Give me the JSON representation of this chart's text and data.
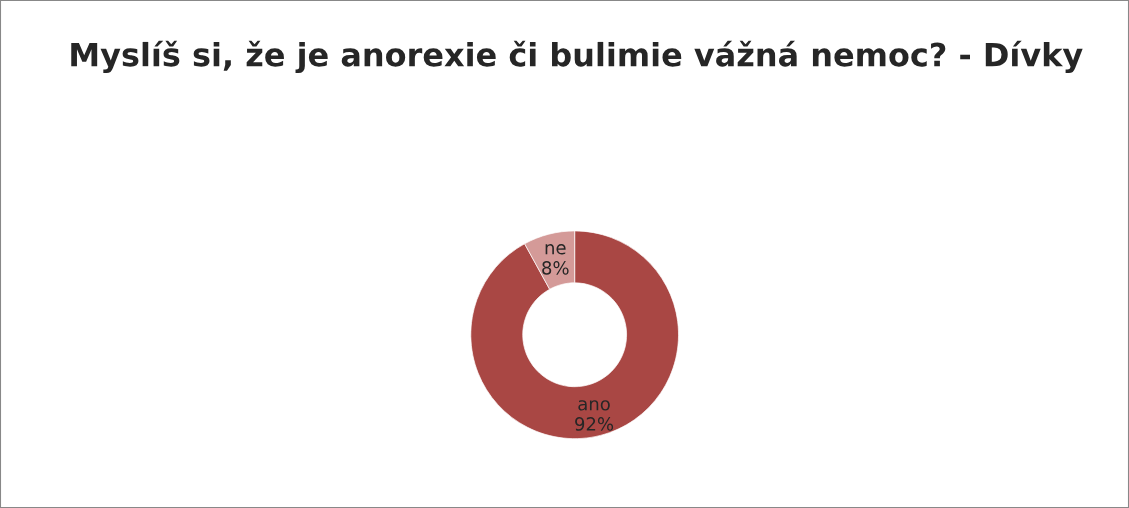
{
  "chart_data": {
    "type": "donut",
    "title": "Myslíš si, že je anorexie či bulimie vážná nemoc? - Dívky",
    "categories": [
      "ano",
      "ne"
    ],
    "values": [
      92,
      8
    ],
    "colors": [
      "#a94744",
      "#d49a98"
    ],
    "value_labels": [
      "92%",
      "8%"
    ],
    "legend": false
  }
}
